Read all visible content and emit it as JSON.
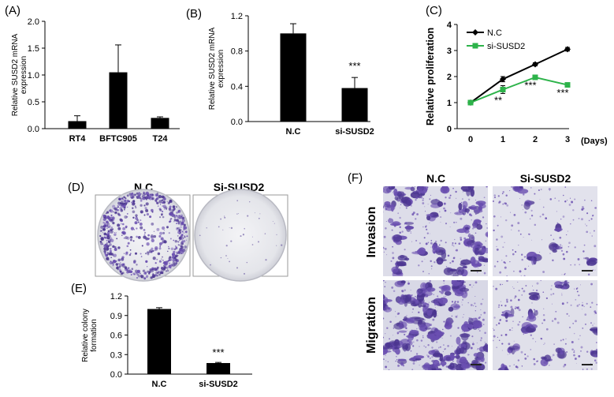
{
  "panels": {
    "A": "(A)",
    "B": "(B)",
    "C": "(C)",
    "D": "(D)",
    "E": "(E)",
    "F": "(F)"
  },
  "chart_data": [
    {
      "id": "A",
      "type": "bar",
      "categories": [
        "RT4",
        "BFTC905",
        "T24"
      ],
      "values": [
        0.14,
        1.05,
        0.2
      ],
      "errors": [
        0.1,
        0.51,
        0.02
      ],
      "ylabel_lines": [
        "Relative SUSD2 mRNA",
        "expression"
      ],
      "ylim": [
        0,
        2
      ],
      "yticks": [
        "0.0",
        "0.5",
        "1.0",
        "1.5",
        "2.0"
      ],
      "bar_color": "#000000"
    },
    {
      "id": "B",
      "type": "bar",
      "categories": [
        "N.C",
        "si-SUSD2"
      ],
      "values": [
        1.0,
        0.38
      ],
      "errors": [
        0.11,
        0.12
      ],
      "significance": [
        "",
        "***"
      ],
      "ylabel_lines": [
        "Relative SUSD2 mRNA",
        "expression"
      ],
      "ylim": [
        0,
        1.2
      ],
      "yticks": [
        "0.0",
        "0.4",
        "0.8",
        "1.2"
      ],
      "bar_color": "#000000"
    },
    {
      "id": "C",
      "type": "line",
      "x": [
        0,
        1,
        2,
        3
      ],
      "xticks": [
        "0",
        "1",
        "2",
        "3"
      ],
      "xlabel": "(Days)",
      "ylabel": "Relative proliferation",
      "ylim": [
        0,
        4
      ],
      "yticks": [
        "0",
        "1",
        "2",
        "3",
        "4"
      ],
      "legend_position": "top-left",
      "series": [
        {
          "name": "N.C",
          "values": [
            1.0,
            1.9,
            2.47,
            3.05
          ],
          "errors": [
            0.03,
            0.1,
            0.06,
            0.07
          ],
          "color": "#000000",
          "marker": "diamond"
        },
        {
          "name": "si-SUSD2",
          "values": [
            1.0,
            1.5,
            1.97,
            1.68
          ],
          "errors": [
            0.03,
            0.15,
            0.05,
            0.05
          ],
          "color": "#2db34a",
          "marker": "square"
        }
      ],
      "significance": [
        {
          "x": 1,
          "text": "**"
        },
        {
          "x": 2,
          "text": "***"
        },
        {
          "x": 3,
          "text": "***"
        }
      ]
    },
    {
      "id": "E",
      "type": "bar",
      "categories": [
        "N.C",
        "si-SUSD2"
      ],
      "values": [
        1.0,
        0.17
      ],
      "errors": [
        0.02,
        0.01
      ],
      "significance": [
        "",
        "***"
      ],
      "ylabel_lines": [
        "Relative colony",
        "formation"
      ],
      "ylim": [
        0,
        1.2
      ],
      "yticks": [
        "0.0",
        "0.3",
        "0.6",
        "0.9",
        "1.2"
      ],
      "bar_color": "#000000"
    }
  ],
  "panel_d": {
    "titles": [
      "N.C",
      "Si-SUSD2"
    ]
  },
  "panel_f": {
    "titles": [
      "N.C",
      "Si-SUSD2"
    ],
    "rows": [
      "Invasion",
      "Migration"
    ]
  },
  "colors": {
    "stain": "#6a4fb0",
    "stain_dark": "#4b3590",
    "field_bg": "#dcdce8",
    "dish_bg": "#e7e8ec"
  }
}
